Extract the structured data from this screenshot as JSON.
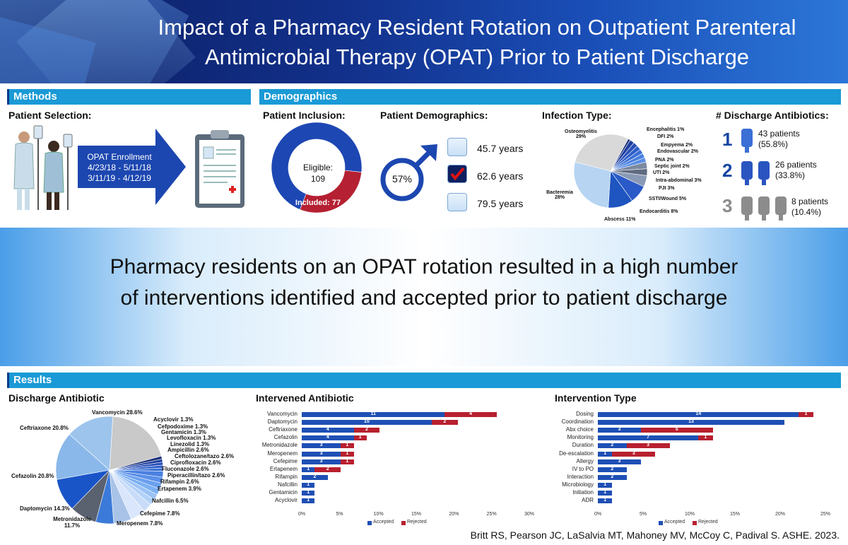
{
  "title": "Impact of a Pharmacy Resident Rotation on Outpatient Parenteral Antimicrobial Therapy (OPAT) Prior to Patient Discharge",
  "methods": {
    "heading": "Methods",
    "sub": "Patient Selection:",
    "arrow_lines": [
      "OPAT Enrollment",
      "4/23/18 - 5/11/18",
      "3/11/19 - 4/12/19"
    ]
  },
  "demographics": {
    "heading": "Demographics",
    "inclusion": {
      "sub": "Patient Inclusion:",
      "eligible_label": "Eligible:",
      "eligible_value": "109",
      "included_label": "Included: 77",
      "included": 77,
      "eligible": 109
    },
    "patient": {
      "sub": "Patient Demographics:",
      "male_pct": "57%",
      "ages": [
        "45.7 years",
        "62.6 years",
        "79.5 years"
      ]
    },
    "infection": {
      "sub": "Infection Type:",
      "slices": [
        {
          "label": "Osteomyelitis 29%",
          "value": 29
        },
        {
          "label": "Encephalitis 1%",
          "value": 1
        },
        {
          "label": "DFI 2%",
          "value": 2
        },
        {
          "label": "Empyema 2%",
          "value": 2
        },
        {
          "label": "Endovascular 2%",
          "value": 2
        },
        {
          "label": "PNA 2%",
          "value": 2
        },
        {
          "label": "Septic joint 2%",
          "value": 2
        },
        {
          "label": "UTI 2%",
          "value": 2
        },
        {
          "label": "Intra-abdominal 3%",
          "value": 3
        },
        {
          "label": "PJI 3%",
          "value": 3
        },
        {
          "label": "SSTI/Wound 5%",
          "value": 5
        },
        {
          "label": "Endocarditis 8%",
          "value": 8
        },
        {
          "label": "Abscess 11%",
          "value": 11
        },
        {
          "label": "Bacteremia 28%",
          "value": 28
        }
      ]
    },
    "discharge_abx": {
      "sub": "# Discharge Antibiotics:",
      "rows": [
        {
          "num": "1",
          "line1": "43 patients",
          "line2": "(55.8%)"
        },
        {
          "num": "2",
          "line1": "26 patients",
          "line2": "(33.8%)"
        },
        {
          "num": "3",
          "line1": "8 patients",
          "line2": "(10.4%)"
        }
      ]
    }
  },
  "key_message": "Pharmacy residents on an OPAT rotation resulted in a high number of interventions identified and accepted prior to patient discharge",
  "results": {
    "heading": "Results",
    "discharge_antibiotic": {
      "sub": "Discharge Antibiotic",
      "slices": [
        {
          "label": "Vancomycin 28.6%",
          "value": 28.6
        },
        {
          "label": "Acyclovir 1.3%",
          "value": 1.3
        },
        {
          "label": "Cefpodoxime 1.3%",
          "value": 1.3
        },
        {
          "label": "Gentamicin 1.3%",
          "value": 1.3
        },
        {
          "label": "Levofloxacin 1.3%",
          "value": 1.3
        },
        {
          "label": "Linezolid 1.3%",
          "value": 1.3
        },
        {
          "label": "Ampicillin 2.6%",
          "value": 2.6
        },
        {
          "label": "Ceftolozane/tazo 2.6%",
          "value": 2.6
        },
        {
          "label": "Ciprofloxacin 2.6%",
          "value": 2.6
        },
        {
          "label": "Fluconazole 2.6%",
          "value": 2.6
        },
        {
          "label": "Piperacillin/tazo 2.6%",
          "value": 2.6
        },
        {
          "label": "Rifampin 2.6%",
          "value": 2.6
        },
        {
          "label": "Ertapenem 3.9%",
          "value": 3.9
        },
        {
          "label": "Nafcillin 6.5%",
          "value": 6.5
        },
        {
          "label": "Cefepime 7.8%",
          "value": 7.8
        },
        {
          "label": "Meropenem 7.8%",
          "value": 7.8
        },
        {
          "label": "Metronidazole 11.7%",
          "value": 11.7
        },
        {
          "label": "Daptomycin 14.3%",
          "value": 14.3
        },
        {
          "label": "Cefazolin 20.8%",
          "value": 20.8
        },
        {
          "label": "Ceftriaxone 20.8%",
          "value": 20.8
        }
      ]
    },
    "intervened_antibiotic": {
      "sub": "Intervened Antibiotic",
      "legend": [
        "Accepted",
        "Rejected"
      ],
      "ticks": [
        "0%",
        "5%",
        "10%",
        "15%",
        "20%",
        "25%",
        "30%"
      ],
      "rows": [
        {
          "name": "Vancomycin",
          "acc": 11,
          "rej": 4
        },
        {
          "name": "Daptomycin",
          "acc": 10,
          "rej": 2
        },
        {
          "name": "Ceftriaxone",
          "acc": 4,
          "rej": 2
        },
        {
          "name": "Cefazolin",
          "acc": 4,
          "rej": 1
        },
        {
          "name": "Metronidazole",
          "acc": 3,
          "rej": 1
        },
        {
          "name": "Meropenem",
          "acc": 3,
          "rej": 1
        },
        {
          "name": "Cefepime",
          "acc": 3,
          "rej": 1
        },
        {
          "name": "Ertapenem",
          "acc": 1,
          "rej": 2
        },
        {
          "name": "Rifampin",
          "acc": 2,
          "rej": 0
        },
        {
          "name": "Nafcillin",
          "acc": 1,
          "rej": 0
        },
        {
          "name": "Gentamicin",
          "acc": 1,
          "rej": 0
        },
        {
          "name": "Acyclovir",
          "acc": 1,
          "rej": 0
        }
      ]
    },
    "intervention_type": {
      "sub": "Intervention Type",
      "legend": [
        "Accepted",
        "Rejected"
      ],
      "ticks": [
        "0%",
        "5%",
        "10%",
        "15%",
        "20%",
        "25%"
      ],
      "rows": [
        {
          "name": "Dosing",
          "acc": 14,
          "rej": 1
        },
        {
          "name": "Coordination",
          "acc": 13,
          "rej": 0
        },
        {
          "name": "Abx choice",
          "acc": 3,
          "rej": 5
        },
        {
          "name": "Monitoring",
          "acc": 7,
          "rej": 1
        },
        {
          "name": "Duration",
          "acc": 2,
          "rej": 3
        },
        {
          "name": "De-escalation",
          "acc": 1,
          "rej": 3
        },
        {
          "name": "Allergy",
          "acc": 3,
          "rej": 0
        },
        {
          "name": "IV to PO",
          "acc": 2,
          "rej": 0
        },
        {
          "name": "Interaction",
          "acc": 2,
          "rej": 0
        },
        {
          "name": "Microbiology",
          "acc": 1,
          "rej": 0
        },
        {
          "name": "Initiation",
          "acc": 1,
          "rej": 0
        },
        {
          "name": "ADR",
          "acc": 1,
          "rej": 0
        }
      ]
    }
  },
  "citation": "Britt RS, Pearson JC, LaSalvia MT, Mahoney MV, McCoy C, Padival S. ASHE. 2023.",
  "colors": {
    "accent": "#1a9ad6",
    "accepted": "#1e4fb5",
    "rejected": "#b8202f",
    "dark_blue": "#1746a2"
  }
}
